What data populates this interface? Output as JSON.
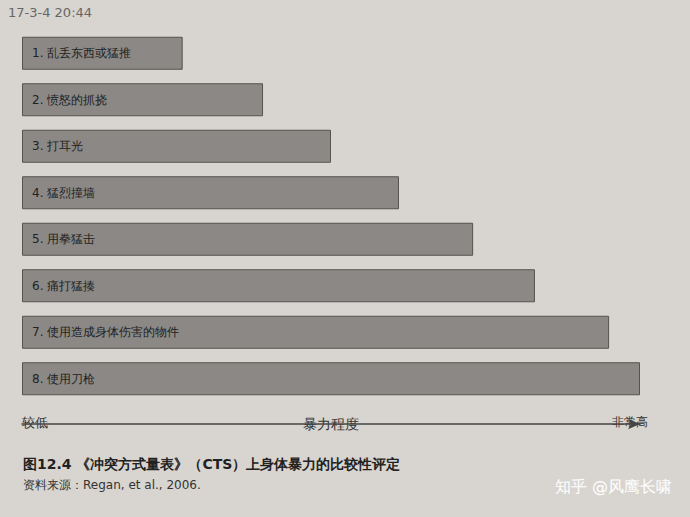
{
  "chart_data": {
    "type": "bar",
    "orientation": "horizontal",
    "title": "图12.4 《冲突方式量表》（CTS）上身体暴力的比较性评定",
    "source": "资料来源：Regan, et al., 2006.",
    "xlabel": "暴力程度",
    "axis_ends": [
      "较低",
      "非常高"
    ],
    "timestamp": "17-3-4 20:44",
    "watermark": "知乎 @风鹰长啸",
    "categories": [
      "1. 乱丢东西或猛推",
      "2. 愤怒的抓挠",
      "3. 打耳光",
      "4. 猛烈撞墙",
      "5. 用拳猛击",
      "6. 痛打猛揍",
      "7. 使用造成身体伤害的物件",
      "8. 使用刀枪"
    ],
    "values": [
      26,
      39,
      50,
      61,
      73,
      83,
      95,
      100
    ],
    "color": "#8b8885",
    "xlim": [
      0,
      100
    ],
    "tick_labels": false,
    "grid": false
  }
}
